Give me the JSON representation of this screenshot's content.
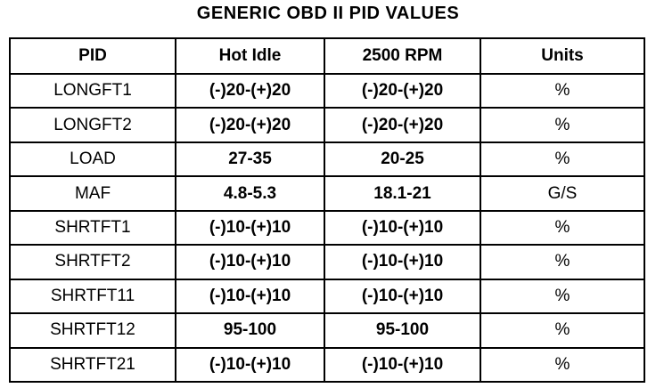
{
  "title": "GENERIC OBD II PID VALUES",
  "table": {
    "header": [
      "PID",
      "Hot Idle",
      "2500 RPM",
      "Units"
    ],
    "rows": [
      [
        "LONGFT1",
        "(-)20-(+)20",
        "(-)20-(+)20",
        "%"
      ],
      [
        "LONGFT2",
        "(-)20-(+)20",
        "(-)20-(+)20",
        "%"
      ],
      [
        "LOAD",
        "27-35",
        "20-25",
        "%"
      ],
      [
        "MAF",
        "4.8-5.3",
        "18.1-21",
        "G/S"
      ],
      [
        "SHRTFT1",
        "(-)10-(+)10",
        "(-)10-(+)10",
        "%"
      ],
      [
        "SHRTFT2",
        "(-)10-(+)10",
        "(-)10-(+)10",
        "%"
      ],
      [
        "SHRTFT11",
        "(-)10-(+)10",
        "(-)10-(+)10",
        "%"
      ],
      [
        "SHRTFT12",
        "95-100",
        "95-100",
        "%"
      ],
      [
        "SHRTFT21",
        "(-)10-(+)10",
        "(-)10-(+)10",
        "%"
      ]
    ]
  }
}
